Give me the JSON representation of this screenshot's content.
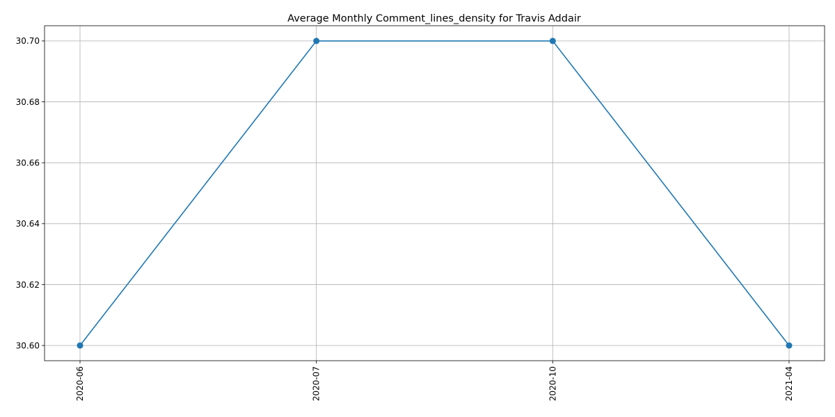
{
  "chart_data": {
    "type": "line",
    "title": "Average Monthly Comment_lines_density for Travis Addair",
    "xlabel": "",
    "ylabel": "",
    "categories": [
      "2020-06",
      "2020-07",
      "2020-10",
      "2021-04"
    ],
    "series": [
      {
        "name": "Comment_lines_density",
        "values": [
          30.6,
          30.7,
          30.7,
          30.6
        ],
        "color": "#1f77b4",
        "marker": "circle"
      }
    ],
    "ylim": [
      30.595,
      30.705
    ],
    "yticks": [
      30.6,
      30.62,
      30.64,
      30.66,
      30.68,
      30.7
    ],
    "ytick_labels": [
      "30.60",
      "30.62",
      "30.64",
      "30.66",
      "30.68",
      "30.70"
    ],
    "grid": true,
    "legend": "none"
  }
}
